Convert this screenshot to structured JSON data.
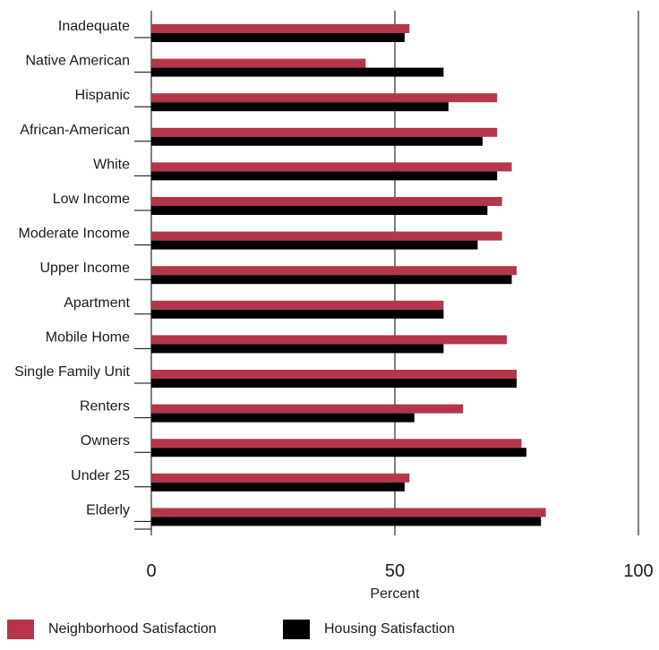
{
  "chart_data": {
    "type": "bar",
    "orientation": "horizontal",
    "categories": [
      "Inadequate",
      "Native American",
      "Hispanic",
      "African-American",
      "White",
      "Low Income",
      "Moderate Income",
      "Upper Income",
      "Apartment",
      "Mobile Home",
      "Single Family Unit",
      "Renters",
      "Owners",
      "Under 25",
      "Elderly"
    ],
    "series": [
      {
        "name": "Neighborhood Satisfaction",
        "color": "#b5364a",
        "values": [
          53,
          44,
          71,
          71,
          74,
          72,
          72,
          75,
          60,
          73,
          75,
          64,
          76,
          53,
          81
        ]
      },
      {
        "name": "Housing Satisfaction",
        "color": "#000000",
        "values": [
          52,
          60,
          61,
          68,
          71,
          69,
          67,
          74,
          60,
          60,
          75,
          54,
          77,
          52,
          80
        ]
      }
    ],
    "xlabel": "Percent",
    "xlim": [
      0,
      100
    ],
    "xticks": [
      "0",
      "50",
      "100"
    ],
    "grid": "vertical gridlines at 0, 50, 100",
    "legend_position": "bottom"
  }
}
